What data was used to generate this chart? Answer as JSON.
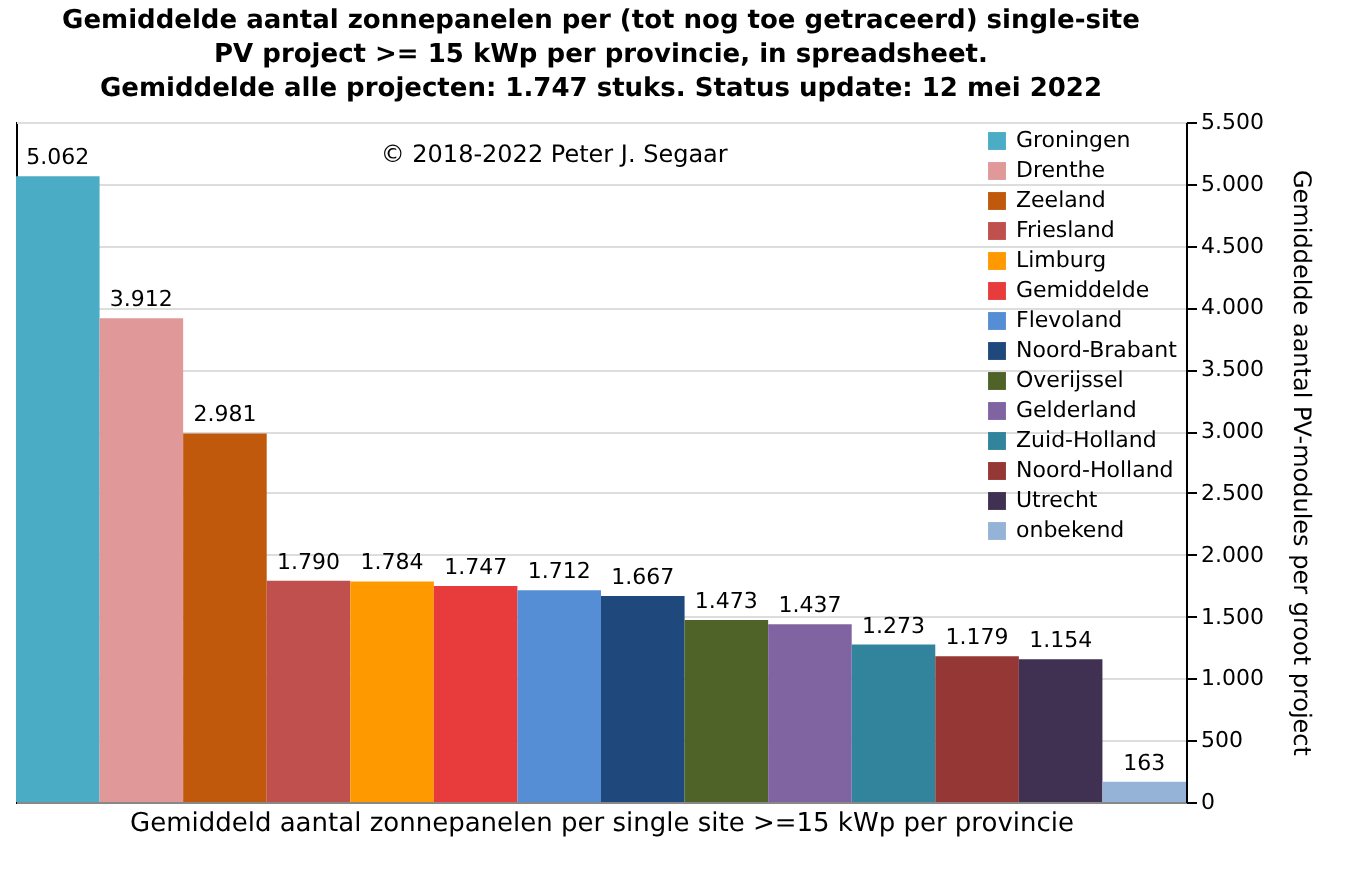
{
  "chart_data": {
    "type": "bar",
    "title": "Gemiddelde aantal zonnepanelen per (tot nog toe getraceerd) single-site\nPV project >= 15 kWp per provincie, in spreadsheet.\nGemiddelde alle projecten: 1.747 stuks. Status update: 12 mei 2022",
    "xlabel": "Gemiddeld aantal zonnepanelen per single site >=15 kWp per provincie",
    "ylabel": "Gemiddelde aantal PV-modules per groot project",
    "annotations": [
      "© 2018-2022 Peter J. Segaar"
    ],
    "categories": [
      null,
      null,
      null,
      null,
      null,
      null,
      null,
      null,
      null,
      null,
      null,
      null,
      null,
      null
    ],
    "series": [
      {
        "name": "Groningen",
        "color": "#4bacc6",
        "values": [
          5062,
          null,
          null,
          null,
          null,
          null,
          null,
          null,
          null,
          null,
          null,
          null,
          null,
          null
        ],
        "value_labels": [
          "5.062",
          null,
          null,
          null,
          null,
          null,
          null,
          null,
          null,
          null,
          null,
          null,
          null,
          null
        ]
      },
      {
        "name": "Drenthe",
        "color": "#e09898",
        "values": [
          null,
          3912,
          null,
          null,
          null,
          null,
          null,
          null,
          null,
          null,
          null,
          null,
          null,
          null
        ],
        "value_labels": [
          null,
          "3.912",
          null,
          null,
          null,
          null,
          null,
          null,
          null,
          null,
          null,
          null,
          null,
          null
        ]
      },
      {
        "name": "Zeeland",
        "color": "#c0590c",
        "values": [
          null,
          null,
          2981,
          null,
          null,
          null,
          null,
          null,
          null,
          null,
          null,
          null,
          null,
          null
        ],
        "value_labels": [
          null,
          null,
          "2.981",
          null,
          null,
          null,
          null,
          null,
          null,
          null,
          null,
          null,
          null,
          null
        ]
      },
      {
        "name": "Friesland",
        "color": "#c0504d",
        "values": [
          null,
          null,
          null,
          1790,
          null,
          null,
          null,
          null,
          null,
          null,
          null,
          null,
          null,
          null
        ],
        "value_labels": [
          null,
          null,
          null,
          "1.790",
          null,
          null,
          null,
          null,
          null,
          null,
          null,
          null,
          null,
          null
        ]
      },
      {
        "name": "Limburg",
        "color": "#ff9900",
        "values": [
          null,
          null,
          null,
          null,
          1784,
          null,
          null,
          null,
          null,
          null,
          null,
          null,
          null,
          null
        ],
        "value_labels": [
          null,
          null,
          null,
          null,
          "1.784",
          null,
          null,
          null,
          null,
          null,
          null,
          null,
          null,
          null
        ]
      },
      {
        "name": "Gemiddelde",
        "color": "#e83c3c",
        "values": [
          null,
          null,
          null,
          null,
          null,
          1747,
          null,
          null,
          null,
          null,
          null,
          null,
          null,
          null
        ],
        "value_labels": [
          null,
          null,
          null,
          null,
          null,
          "1.747",
          null,
          null,
          null,
          null,
          null,
          null,
          null,
          null
        ]
      },
      {
        "name": "Flevoland",
        "color": "#558ed5",
        "values": [
          null,
          null,
          null,
          null,
          null,
          null,
          1712,
          null,
          null,
          null,
          null,
          null,
          null,
          null
        ],
        "value_labels": [
          null,
          null,
          null,
          null,
          null,
          null,
          "1.712",
          null,
          null,
          null,
          null,
          null,
          null,
          null
        ]
      },
      {
        "name": "Noord-Brabant",
        "color": "#1f497d",
        "values": [
          null,
          null,
          null,
          null,
          null,
          null,
          null,
          1667,
          null,
          null,
          null,
          null,
          null,
          null
        ],
        "value_labels": [
          null,
          null,
          null,
          null,
          null,
          null,
          null,
          "1.667",
          null,
          null,
          null,
          null,
          null,
          null
        ]
      },
      {
        "name": "Overijssel",
        "color": "#4f6228",
        "values": [
          null,
          null,
          null,
          null,
          null,
          null,
          null,
          null,
          1473,
          null,
          null,
          null,
          null,
          null
        ],
        "value_labels": [
          null,
          null,
          null,
          null,
          null,
          null,
          null,
          null,
          "1.473",
          null,
          null,
          null,
          null,
          null
        ]
      },
      {
        "name": "Gelderland",
        "color": "#8064a2",
        "values": [
          null,
          null,
          null,
          null,
          null,
          null,
          null,
          null,
          null,
          1437,
          null,
          null,
          null,
          null
        ],
        "value_labels": [
          null,
          null,
          null,
          null,
          null,
          null,
          null,
          null,
          null,
          "1.437",
          null,
          null,
          null,
          null
        ]
      },
      {
        "name": "Zuid-Holland",
        "color": "#31849b",
        "values": [
          null,
          null,
          null,
          null,
          null,
          null,
          null,
          null,
          null,
          null,
          1273,
          null,
          null,
          null
        ],
        "value_labels": [
          null,
          null,
          null,
          null,
          null,
          null,
          null,
          null,
          null,
          null,
          "1.273",
          null,
          null,
          null
        ]
      },
      {
        "name": "Noord-Holland",
        "color": "#953735",
        "values": [
          null,
          null,
          null,
          null,
          null,
          null,
          null,
          null,
          null,
          null,
          null,
          1179,
          null,
          null
        ],
        "value_labels": [
          null,
          null,
          null,
          null,
          null,
          null,
          null,
          null,
          null,
          null,
          null,
          "1.179",
          null,
          null
        ]
      },
      {
        "name": "Utrecht",
        "color": "#403152",
        "values": [
          null,
          null,
          null,
          null,
          null,
          null,
          null,
          null,
          null,
          null,
          null,
          null,
          1154,
          null
        ],
        "value_labels": [
          null,
          null,
          null,
          null,
          null,
          null,
          null,
          null,
          null,
          null,
          null,
          null,
          "1.154",
          null
        ]
      },
      {
        "name": "onbekend",
        "color": "#95b3d7",
        "values": [
          null,
          null,
          null,
          null,
          null,
          null,
          null,
          null,
          null,
          null,
          null,
          null,
          null,
          163
        ],
        "value_labels": [
          null,
          null,
          null,
          null,
          null,
          null,
          null,
          null,
          null,
          null,
          null,
          null,
          null,
          "163"
        ]
      }
    ],
    "ylim": [
      0,
      5500
    ],
    "yticks": [
      0,
      {
        "value": 500,
        "label": "500"
      },
      {
        "value": 1000,
        "label": "1.000"
      },
      {
        "value": 1500,
        "label": "1.500"
      },
      {
        "value": 2000,
        "label": "2.000"
      },
      {
        "value": 2500,
        "label": "2.500"
      },
      {
        "value": 3000,
        "label": "3.000"
      },
      {
        "value": 3500,
        "label": "3.500"
      },
      {
        "value": 4000,
        "label": "4.000"
      },
      {
        "value": 4500,
        "label": "4.500"
      },
      {
        "value": 5000,
        "label": "5.000"
      },
      {
        "value": 5500,
        "label": "5.500"
      }
    ],
    "grid": "y",
    "legend": "top right",
    "tick_labels": "y"
  }
}
